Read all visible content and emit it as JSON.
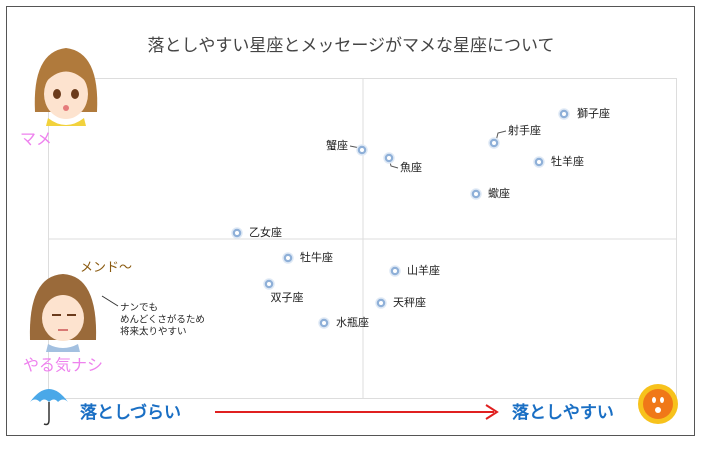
{
  "title": "落としやすい星座とメッセージがマメな星座について",
  "top_label": "マメ",
  "bottom_label": "やる気ナシ",
  "mumble": "メンド～",
  "speech": [
    "ナンでも",
    "めんどくさがるため",
    "将来太りやすい"
  ],
  "left_label": "落としづらい",
  "right_label": "落としやすい",
  "points": [
    {
      "label": "獅子座"
    },
    {
      "label": "射手座"
    },
    {
      "label": "蟹座"
    },
    {
      "label": "魚座"
    },
    {
      "label": "牡羊座"
    },
    {
      "label": "蠍座"
    },
    {
      "label": "乙女座"
    },
    {
      "label": "牡牛座"
    },
    {
      "label": "山羊座"
    },
    {
      "label": "双子座"
    },
    {
      "label": "天秤座"
    },
    {
      "label": "水瓶座"
    }
  ]
}
